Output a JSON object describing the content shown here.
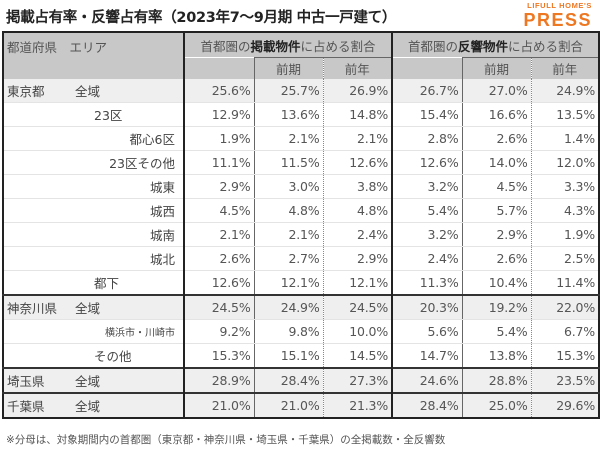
{
  "header": {
    "title": "掲載占有率・反響占有率（2023年7～9月期 中古一戸建て）",
    "logo_top": "LIFULL HOME'S",
    "logo_bottom": "PRESS",
    "brand_color": "#ee7722"
  },
  "table": {
    "col_area_label": "都道府県　エリア",
    "group1_prefix": "首都圏の",
    "group1_bold": "掲載物件",
    "group1_suffix": "に占める割合",
    "group2_prefix": "首都圏の",
    "group2_bold": "反響物件",
    "group2_suffix": "に占める割合",
    "sub_prev_period": "前期",
    "sub_prev_year": "前年",
    "rows": [
      {
        "pref": "東京都",
        "area": "全域",
        "values": [
          "25.6%",
          "25.7%",
          "26.9%",
          "26.7%",
          "27.0%",
          "24.9%"
        ]
      },
      {
        "pref": "",
        "area": "23区",
        "values": [
          "12.9%",
          "13.6%",
          "14.8%",
          "15.4%",
          "16.6%",
          "13.5%"
        ]
      },
      {
        "pref": "",
        "area": "都心6区",
        "values": [
          "1.9%",
          "2.1%",
          "2.1%",
          "2.8%",
          "2.6%",
          "1.4%"
        ]
      },
      {
        "pref": "",
        "area": "23区その他",
        "values": [
          "11.1%",
          "11.5%",
          "12.6%",
          "12.6%",
          "14.0%",
          "12.0%"
        ]
      },
      {
        "pref": "",
        "area": "城東",
        "values": [
          "2.9%",
          "3.0%",
          "3.8%",
          "3.2%",
          "4.5%",
          "3.3%"
        ]
      },
      {
        "pref": "",
        "area": "城西",
        "values": [
          "4.5%",
          "4.8%",
          "4.8%",
          "5.4%",
          "5.7%",
          "4.3%"
        ]
      },
      {
        "pref": "",
        "area": "城南",
        "values": [
          "2.1%",
          "2.1%",
          "2.4%",
          "3.2%",
          "2.9%",
          "1.9%"
        ]
      },
      {
        "pref": "",
        "area": "城北",
        "values": [
          "2.6%",
          "2.7%",
          "2.9%",
          "2.4%",
          "2.6%",
          "2.5%"
        ]
      },
      {
        "pref": "",
        "area": "都下",
        "values": [
          "12.6%",
          "12.1%",
          "12.1%",
          "11.3%",
          "10.4%",
          "11.4%"
        ]
      },
      {
        "pref": "神奈川県",
        "area": "全域",
        "values": [
          "24.5%",
          "24.9%",
          "24.5%",
          "20.3%",
          "19.2%",
          "22.0%"
        ]
      },
      {
        "pref": "",
        "area": "横浜市・川崎市",
        "values": [
          "9.2%",
          "9.8%",
          "10.0%",
          "5.6%",
          "5.4%",
          "6.7%"
        ]
      },
      {
        "pref": "",
        "area": "その他",
        "values": [
          "15.3%",
          "15.1%",
          "14.5%",
          "14.7%",
          "13.8%",
          "15.3%"
        ]
      },
      {
        "pref": "埼玉県",
        "area": "全域",
        "values": [
          "28.9%",
          "28.4%",
          "27.3%",
          "24.6%",
          "28.8%",
          "23.5%"
        ]
      },
      {
        "pref": "千葉県",
        "area": "全域",
        "values": [
          "21.0%",
          "21.0%",
          "21.3%",
          "28.4%",
          "25.0%",
          "29.6%"
        ]
      }
    ]
  },
  "footnote": "※分母は、対象期間内の首都圏（東京都・神奈川県・埼玉県・千葉県）の全掲載数・全反響数"
}
